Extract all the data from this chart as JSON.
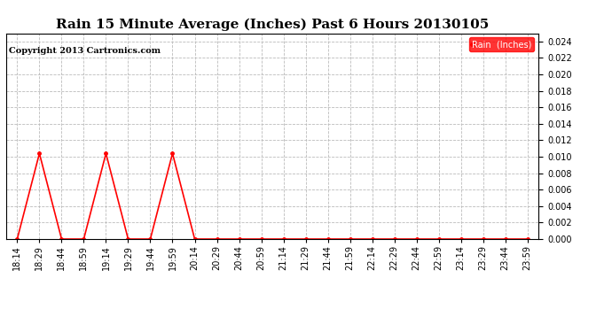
{
  "title": "Rain 15 Minute Average (Inches) Past 6 Hours 20130105",
  "copyright": "Copyright 2013 Cartronics.com",
  "legend_label": "Rain  (Inches)",
  "x_labels": [
    "18:14",
    "18:29",
    "18:44",
    "18:59",
    "19:14",
    "19:29",
    "19:44",
    "19:59",
    "20:14",
    "20:29",
    "20:44",
    "20:59",
    "21:14",
    "21:29",
    "21:44",
    "21:59",
    "22:14",
    "22:29",
    "22:44",
    "22:59",
    "23:14",
    "23:29",
    "23:44",
    "23:59"
  ],
  "y_values": [
    0.0,
    0.0104,
    0.0,
    0.0,
    0.0104,
    0.0,
    0.0,
    0.0104,
    0.0,
    0.0,
    0.0,
    0.0,
    0.0,
    0.0,
    0.0,
    0.0,
    0.0,
    0.0,
    0.0,
    0.0,
    0.0,
    0.0,
    0.0,
    0.0
  ],
  "ylim": [
    0.0,
    0.025
  ],
  "yticks": [
    0.0,
    0.002,
    0.004,
    0.006,
    0.008,
    0.01,
    0.012,
    0.014,
    0.016,
    0.018,
    0.02,
    0.022,
    0.024
  ],
  "line_color": "#FF0000",
  "marker": "o",
  "marker_size": 2.5,
  "line_width": 1.2,
  "grid_color": "#BBBBBB",
  "bg_color": "#FFFFFF",
  "title_fontsize": 11,
  "tick_fontsize": 7,
  "copyright_fontsize": 7,
  "legend_fontsize": 7,
  "legend_bg": "#FF0000",
  "legend_fg": "#FFFFFF"
}
